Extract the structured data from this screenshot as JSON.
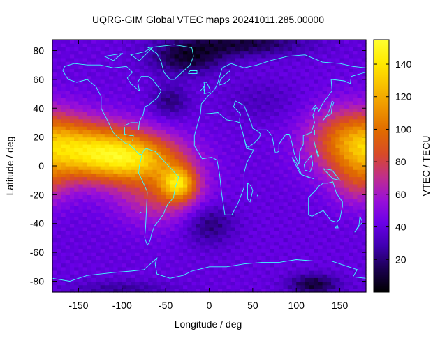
{
  "chart_data": {
    "type": "heatmap",
    "title": "UQRG-GIM Global VTEC maps 20241011.285.00000",
    "xlabel": "Longitude / deg",
    "ylabel": "Latitude / deg",
    "colorbar_label": "VTEC / TECU",
    "xlim": [
      -180,
      180
    ],
    "ylim": [
      -87.5,
      87.5
    ],
    "zlim": [
      0,
      155
    ],
    "xticks": [
      -150,
      -100,
      -50,
      0,
      50,
      100,
      150
    ],
    "xtick_labels": [
      "-150",
      "-100",
      "-50",
      "0",
      "50",
      "100",
      "150"
    ],
    "yticks": [
      -80,
      -60,
      -40,
      -20,
      0,
      20,
      40,
      60,
      80
    ],
    "ytick_labels": [
      "-80",
      "-60",
      "-40",
      "-20",
      "0",
      "20",
      "40",
      "60",
      "80"
    ],
    "cbticks": [
      20,
      40,
      60,
      80,
      100,
      120,
      140
    ],
    "cbtick_labels": [
      "20",
      "40",
      "60",
      "80",
      "100",
      "120",
      "140"
    ],
    "colormap": [
      "#000000",
      "#1b0050",
      "#3f00b0",
      "#6a00e8",
      "#9a10d8",
      "#c02e8c",
      "#d84a28",
      "#e06a00",
      "#ee9400",
      "#f8c000",
      "#ffea00",
      "#ffff30"
    ],
    "coastline_color": "#40ffff",
    "grid_step_deg": {
      "lon": 5,
      "lat": 2.5
    },
    "field_model": {
      "background": 40,
      "features": [
        {
          "lon": -130,
          "lat": 10,
          "sigma_lon": 45,
          "sigma_lat": 14,
          "amp": 78
        },
        {
          "lon": -80,
          "lat": 5,
          "sigma_lon": 38,
          "sigma_lat": 11,
          "amp": 55
        },
        {
          "lon": -35,
          "lat": -12,
          "sigma_lon": 14,
          "sigma_lat": 8,
          "amp": 70
        },
        {
          "lon": -55,
          "lat": -20,
          "sigma_lon": 35,
          "sigma_lat": 14,
          "amp": 35
        },
        {
          "lon": 165,
          "lat": 18,
          "sigma_lon": 35,
          "sigma_lat": 16,
          "amp": 60
        },
        {
          "lon": 170,
          "lat": -12,
          "sigma_lon": 20,
          "sigma_lat": 12,
          "amp": 25
        },
        {
          "lon": -25,
          "lat": 75,
          "sigma_lon": 30,
          "sigma_lat": 8,
          "amp": -30
        },
        {
          "lon": 40,
          "lat": 85,
          "sigma_lon": 50,
          "sigma_lat": 6,
          "amp": -28
        },
        {
          "lon": -45,
          "lat": 45,
          "sigma_lon": 15,
          "sigma_lat": 8,
          "amp": -20
        },
        {
          "lon": 0,
          "lat": -40,
          "sigma_lon": 20,
          "sigma_lat": 10,
          "amp": -22
        },
        {
          "lon": 120,
          "lat": -82,
          "sigma_lon": 20,
          "sigma_lat": 5,
          "amp": -30
        },
        {
          "lon": -100,
          "lat": -85,
          "sigma_lon": 40,
          "sigma_lat": 4,
          "amp": -15
        },
        {
          "lon": 60,
          "lat": 45,
          "sigma_lon": 30,
          "sigma_lat": 10,
          "amp": -8
        }
      ]
    },
    "coastlines": [
      [
        [
          -168,
          66
        ],
        [
          -162,
          60
        ],
        [
          -152,
          58
        ],
        [
          -140,
          60
        ],
        [
          -130,
          55
        ],
        [
          -124,
          48
        ],
        [
          -124,
          40
        ],
        [
          -118,
          33
        ],
        [
          -110,
          23
        ],
        [
          -105,
          20
        ],
        [
          -97,
          16
        ],
        [
          -92,
          15
        ],
        [
          -85,
          11
        ],
        [
          -80,
          8
        ],
        [
          -77,
          8
        ],
        [
          -75,
          11
        ],
        [
          -72,
          12
        ]
      ],
      [
        [
          -97,
          27
        ],
        [
          -97,
          22
        ],
        [
          -90,
          21
        ],
        [
          -87,
          21
        ],
        [
          -88,
          17
        ]
      ],
      [
        [
          -81,
          25
        ],
        [
          -82,
          30
        ],
        [
          -90,
          30
        ],
        [
          -97,
          28
        ]
      ],
      [
        [
          -81,
          25
        ],
        [
          -80,
          31
        ],
        [
          -76,
          35
        ],
        [
          -74,
          41
        ],
        [
          -70,
          42
        ],
        [
          -66,
          44
        ],
        [
          -60,
          47
        ],
        [
          -55,
          52
        ],
        [
          -60,
          56
        ],
        [
          -65,
          60
        ],
        [
          -70,
          62
        ],
        [
          -78,
          62
        ],
        [
          -82,
          58
        ],
        [
          -80,
          52
        ],
        [
          -90,
          57
        ],
        [
          -94,
          61
        ],
        [
          -88,
          65
        ],
        [
          -95,
          69
        ],
        [
          -110,
          68
        ],
        [
          -125,
          70
        ],
        [
          -140,
          70
        ],
        [
          -155,
          71
        ],
        [
          -166,
          69
        ],
        [
          -168,
          66
        ]
      ],
      [
        [
          -72,
          12
        ],
        [
          -62,
          10
        ],
        [
          -50,
          2
        ],
        [
          -42,
          -3
        ],
        [
          -35,
          -8
        ],
        [
          -39,
          -15
        ],
        [
          -41,
          -22
        ],
        [
          -48,
          -27
        ],
        [
          -53,
          -34
        ],
        [
          -58,
          -38
        ],
        [
          -63,
          -42
        ],
        [
          -66,
          -47
        ],
        [
          -68,
          -52
        ],
        [
          -71,
          -55
        ],
        [
          -74,
          -50
        ],
        [
          -73,
          -42
        ],
        [
          -72,
          -30
        ],
        [
          -71,
          -18
        ],
        [
          -77,
          -10
        ],
        [
          -81,
          -5
        ],
        [
          -80,
          0
        ],
        [
          -77,
          8
        ]
      ],
      [
        [
          -40,
          60
        ],
        [
          -45,
          60
        ],
        [
          -52,
          65
        ],
        [
          -55,
          72
        ],
        [
          -60,
          78
        ],
        [
          -70,
          82
        ],
        [
          -40,
          84
        ],
        [
          -20,
          82
        ],
        [
          -18,
          76
        ],
        [
          -22,
          70
        ],
        [
          -40,
          60
        ]
      ],
      [
        [
          -10,
          36
        ],
        [
          -9,
          43
        ],
        [
          -2,
          48
        ],
        [
          5,
          52
        ],
        [
          8,
          55
        ],
        [
          10,
          58
        ],
        [
          15,
          68
        ],
        [
          25,
          71
        ],
        [
          40,
          68
        ],
        [
          55,
          70
        ],
        [
          70,
          73
        ],
        [
          90,
          76
        ],
        [
          110,
          77
        ],
        [
          130,
          72
        ],
        [
          150,
          71
        ],
        [
          165,
          69
        ],
        [
          180,
          68
        ]
      ],
      [
        [
          -10,
          36
        ],
        [
          -17,
          21
        ],
        [
          -17,
          14
        ],
        [
          -8,
          5
        ],
        [
          3,
          6
        ],
        [
          9,
          4
        ],
        [
          12,
          -6
        ],
        [
          14,
          -18
        ],
        [
          18,
          -34
        ],
        [
          26,
          -34
        ],
        [
          33,
          -26
        ],
        [
          40,
          -15
        ],
        [
          40,
          -5
        ],
        [
          43,
          2
        ],
        [
          51,
          11
        ],
        [
          43,
          12
        ],
        [
          39,
          22
        ],
        [
          35,
          30
        ],
        [
          30,
          31
        ],
        [
          20,
          32
        ],
        [
          10,
          37
        ],
        [
          -5,
          36
        ]
      ],
      [
        [
          35,
          30
        ],
        [
          35,
          33
        ],
        [
          36,
          36
        ],
        [
          28,
          41
        ],
        [
          30,
          45
        ],
        [
          40,
          42
        ],
        [
          48,
          30
        ],
        [
          50,
          26
        ],
        [
          56,
          24
        ],
        [
          59,
          22
        ],
        [
          57,
          19
        ],
        [
          52,
          16
        ],
        [
          45,
          13
        ],
        [
          42,
          15
        ],
        [
          39,
          22
        ]
      ],
      [
        [
          57,
          25
        ],
        [
          66,
          25
        ],
        [
          72,
          21
        ],
        [
          76,
          9
        ],
        [
          80,
          10
        ],
        [
          80,
          15
        ],
        [
          88,
          22
        ],
        [
          92,
          22
        ],
        [
          95,
          16
        ],
        [
          98,
          8
        ],
        [
          103,
          1
        ],
        [
          104,
          10
        ],
        [
          108,
          15
        ],
        [
          108,
          21
        ],
        [
          117,
          23
        ],
        [
          121,
          30
        ],
        [
          119,
          35
        ],
        [
          122,
          40
        ],
        [
          118,
          39
        ],
        [
          122,
          42
        ],
        [
          126,
          38
        ],
        [
          130,
          43
        ],
        [
          141,
          52
        ],
        [
          140,
          60
        ],
        [
          155,
          59
        ],
        [
          162,
          57
        ],
        [
          163,
          62
        ],
        [
          180,
          65
        ]
      ],
      [
        [
          44,
          -12
        ],
        [
          48,
          -14
        ],
        [
          50,
          -17
        ],
        [
          47,
          -25
        ],
        [
          44,
          -23
        ],
        [
          44,
          -12
        ]
      ],
      [
        [
          95,
          6
        ],
        [
          100,
          2
        ],
        [
          106,
          -6
        ],
        [
          104,
          -5
        ],
        [
          95,
          6
        ]
      ],
      [
        [
          106,
          -6
        ],
        [
          114,
          -8
        ],
        [
          120,
          -9
        ],
        [
          115,
          -8
        ],
        [
          106,
          -6
        ]
      ],
      [
        [
          109,
          1
        ],
        [
          117,
          7
        ],
        [
          119,
          1
        ],
        [
          116,
          -4
        ],
        [
          110,
          -3
        ],
        [
          109,
          1
        ]
      ],
      [
        [
          131,
          -2
        ],
        [
          141,
          -3
        ],
        [
          150,
          -10
        ],
        [
          142,
          -9
        ],
        [
          131,
          -2
        ]
      ],
      [
        [
          114,
          -22
        ],
        [
          114,
          -34
        ],
        [
          118,
          -35
        ],
        [
          124,
          -33
        ],
        [
          131,
          -31
        ],
        [
          136,
          -35
        ],
        [
          140,
          -38
        ],
        [
          146,
          -39
        ],
        [
          150,
          -37
        ],
        [
          153,
          -28
        ],
        [
          153,
          -25
        ],
        [
          146,
          -19
        ],
        [
          142,
          -11
        ],
        [
          136,
          -12
        ],
        [
          131,
          -12
        ],
        [
          126,
          -14
        ],
        [
          122,
          -17
        ],
        [
          114,
          -22
        ]
      ],
      [
        [
          147,
          -41
        ],
        [
          148,
          -43
        ],
        [
          145,
          -43
        ],
        [
          147,
          -41
        ]
      ],
      [
        [
          173,
          -35
        ],
        [
          176,
          -39
        ],
        [
          172,
          -42
        ],
        [
          167,
          -46
        ],
        [
          172,
          -41
        ],
        [
          173,
          -35
        ]
      ],
      [
        [
          130,
          31
        ],
        [
          134,
          34
        ],
        [
          140,
          36
        ],
        [
          141,
          41
        ],
        [
          143,
          44
        ],
        [
          141,
          45
        ],
        [
          139,
          40
        ],
        [
          135,
          35
        ],
        [
          130,
          31
        ]
      ],
      [
        [
          120,
          23
        ],
        [
          121,
          25
        ],
        [
          121,
          22
        ],
        [
          120,
          23
        ]
      ],
      [
        [
          120,
          18
        ],
        [
          122,
          13
        ],
        [
          126,
          7
        ],
        [
          125,
          6
        ],
        [
          120,
          18
        ]
      ],
      [
        [
          -6,
          50
        ],
        [
          -5,
          54
        ],
        [
          -6,
          58
        ],
        [
          -3,
          58
        ],
        [
          1,
          53
        ],
        [
          1,
          51
        ],
        [
          -6,
          50
        ]
      ],
      [
        [
          -10,
          52
        ],
        [
          -6,
          55
        ],
        [
          -6,
          52
        ],
        [
          -10,
          52
        ]
      ],
      [
        [
          -24,
          64
        ],
        [
          -22,
          66
        ],
        [
          -14,
          66
        ],
        [
          -14,
          64
        ],
        [
          -24,
          64
        ]
      ],
      [
        [
          11,
          56
        ],
        [
          13,
          60
        ],
        [
          18,
          63
        ],
        [
          24,
          66
        ],
        [
          24,
          60
        ],
        [
          17,
          57
        ],
        [
          11,
          56
        ]
      ],
      [
        [
          -80,
          73
        ],
        [
          -90,
          77
        ],
        [
          -75,
          79
        ],
        [
          -65,
          82
        ],
        [
          -80,
          73
        ]
      ],
      [
        [
          -110,
          73
        ],
        [
          -120,
          76
        ],
        [
          -100,
          78
        ],
        [
          -110,
          73
        ]
      ],
      [
        [
          -180,
          -78
        ],
        [
          -160,
          -80
        ],
        [
          -150,
          -78
        ],
        [
          -140,
          -76
        ],
        [
          -110,
          -74
        ],
        [
          -90,
          -73
        ],
        [
          -75,
          -72
        ],
        [
          -60,
          -64
        ],
        [
          -62,
          -68
        ],
        [
          -60,
          -75
        ],
        [
          -45,
          -78
        ],
        [
          -30,
          -76
        ],
        [
          -20,
          -73
        ],
        [
          0,
          -70
        ],
        [
          20,
          -70
        ],
        [
          40,
          -68
        ],
        [
          60,
          -67
        ],
        [
          80,
          -67
        ],
        [
          100,
          -65
        ],
        [
          120,
          -66
        ],
        [
          140,
          -66
        ],
        [
          160,
          -70
        ],
        [
          170,
          -72
        ],
        [
          165,
          -77
        ],
        [
          180,
          -78
        ]
      ],
      [
        [
          -80,
          -33
        ],
        [
          -78,
          -32
        ]
      ],
      [
        [
          55,
          -21
        ],
        [
          56,
          -20
        ]
      ]
    ]
  }
}
